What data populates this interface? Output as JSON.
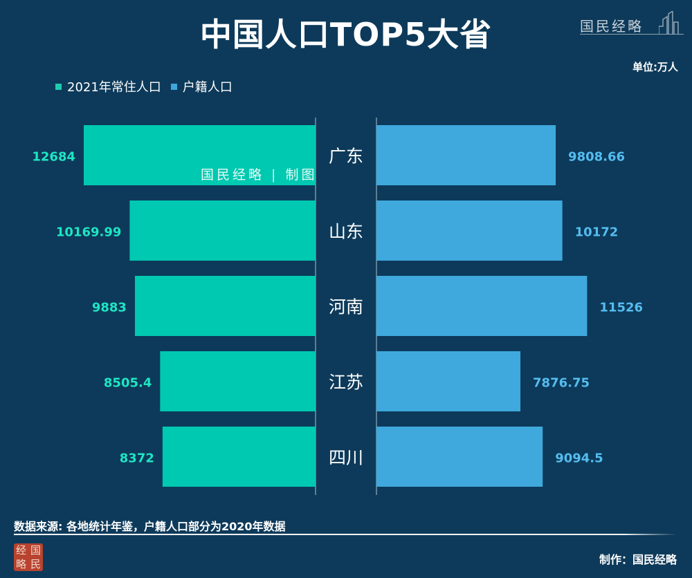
{
  "title": "中国人口TOP5大省",
  "brand": {
    "name": "国民经略"
  },
  "unit_label": "单位:万人",
  "legend": [
    {
      "label": "2021年常住人口",
      "color": "#1ecbb1"
    },
    {
      "label": "户籍人口",
      "color": "#3fa6dc"
    }
  ],
  "bar_watermark": "国民经略 | 制图",
  "source": "数据来源: 各地统计年鉴，户籍人口部分为2020年数据",
  "maker": "制作：国民经略",
  "seal": [
    "经",
    "国",
    "略",
    "民"
  ],
  "chart_data": {
    "type": "bar",
    "orientation": "horizontal-butterfly",
    "categories": [
      "广东",
      "山东",
      "河南",
      "江苏",
      "四川"
    ],
    "series": [
      {
        "name": "2021年常住人口",
        "values": [
          12684,
          10169.99,
          9883,
          8505.4,
          8372
        ],
        "labels": [
          "12684",
          "10169.99",
          "9883",
          "8505.4",
          "8372"
        ],
        "color": "#00c9b1",
        "label_color": "#1ee6c4"
      },
      {
        "name": "户籍人口",
        "values": [
          9808.66,
          10172,
          11526,
          7876.75,
          9094.5
        ],
        "labels": [
          "9808.66",
          "10172",
          "11526",
          "7876.75",
          "9094.5"
        ],
        "color": "#3fa9dd",
        "label_color": "#55bdf0"
      }
    ]
  }
}
